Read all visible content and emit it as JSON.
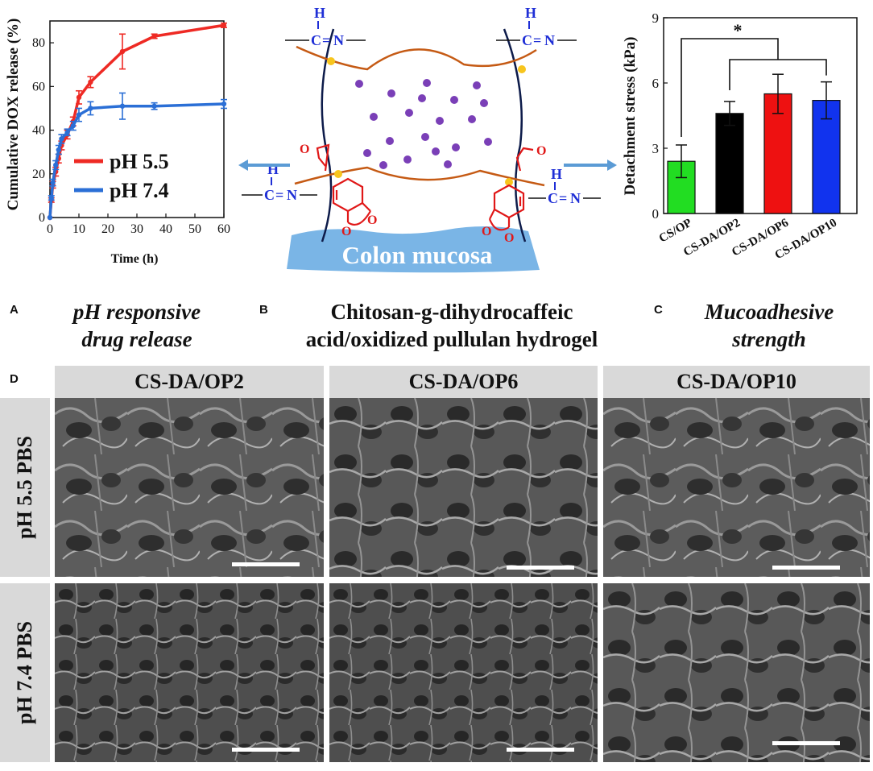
{
  "panel_a": {
    "letter": "A",
    "caption_line1": "pH responsive",
    "caption_line2": "drug release",
    "ylabel": "Cumulative DOX release (%)",
    "xlabel": "Time (h)",
    "legend": [
      "pH 5.5",
      "pH 7.4"
    ],
    "colors": {
      "ph55": "#ee2a24",
      "ph74": "#2b6fd6"
    }
  },
  "panel_b": {
    "letter": "B",
    "caption_line1": "Chitosan-g-dihydrocaffeic",
    "caption_line2": "acid/oxidized pullulan hydrogel",
    "mucosa_label": "Colon mucosa",
    "imine_h": "H",
    "imine_c": "C",
    "imine_eq": "=",
    "imine_n": "N",
    "carbonyl_o": "O",
    "catechol_o": "O"
  },
  "panel_c": {
    "letter": "C",
    "caption_line1": "Mucoadhesive",
    "caption_line2": "strength",
    "ylabel": "Detachment stress (kPa)",
    "significance": "*"
  },
  "panel_d": {
    "letter": "D",
    "columns": [
      "CS-DA/OP2",
      "CS-DA/OP6",
      "CS-DA/OP10"
    ],
    "rows": [
      "pH 5.5 PBS",
      "pH 7.4 PBS"
    ]
  },
  "chart_data": [
    {
      "type": "line",
      "ylabel": "Cumulative DOX release (%)",
      "xlabel": "Time (h)",
      "xlim": [
        0,
        60
      ],
      "ylim": [
        0,
        90
      ],
      "xticks": [
        0,
        10,
        20,
        30,
        40,
        50,
        60
      ],
      "yticks": [
        0,
        20,
        40,
        60,
        80
      ],
      "legend_position": "bottom-right",
      "series": [
        {
          "name": "pH 5.5",
          "color": "#ee2a24",
          "x": [
            0,
            0.5,
            1,
            2,
            3,
            4,
            6,
            8,
            10,
            14,
            25,
            36,
            60
          ],
          "y": [
            0,
            8,
            15,
            21,
            27,
            33,
            38,
            44,
            55,
            62,
            76,
            83,
            88
          ],
          "err": [
            0,
            1,
            1.5,
            2,
            2,
            2,
            2,
            2,
            3,
            2.5,
            8,
            1,
            1
          ]
        },
        {
          "name": "pH 7.4",
          "color": "#2b6fd6",
          "x": [
            0,
            0.5,
            1,
            2,
            3,
            4,
            6,
            8,
            10,
            14,
            25,
            36,
            60
          ],
          "y": [
            0,
            9,
            16,
            24,
            31,
            36,
            39,
            42,
            47,
            50,
            51,
            51,
            52
          ],
          "err": [
            0,
            1,
            1.5,
            2,
            2,
            2,
            1.5,
            2,
            3,
            3,
            6,
            1.5,
            2
          ]
        }
      ]
    },
    {
      "type": "bar",
      "ylabel": "Detachment stress (kPa)",
      "ylim": [
        0,
        9
      ],
      "yticks": [
        0,
        3,
        6,
        9
      ],
      "categories": [
        "CS/OP",
        "CS-DA/OP2",
        "CS-DA/OP6",
        "CS-DA/OP10"
      ],
      "values": [
        2.4,
        4.6,
        5.5,
        5.2
      ],
      "errors": [
        0.75,
        0.55,
        0.9,
        0.85
      ],
      "colors": [
        "#22dd22",
        "#000000",
        "#ee1111",
        "#1133ee"
      ]
    }
  ]
}
